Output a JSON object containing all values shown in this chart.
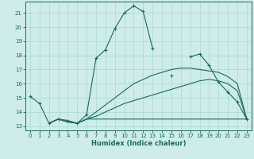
{
  "title": "",
  "xlabel": "Humidex (Indice chaleur)",
  "xlim": [
    -0.5,
    23.5
  ],
  "ylim": [
    12.7,
    21.8
  ],
  "yticks": [
    13,
    14,
    15,
    16,
    17,
    18,
    19,
    20,
    21
  ],
  "xticks": [
    0,
    1,
    2,
    3,
    4,
    5,
    6,
    7,
    8,
    9,
    10,
    11,
    12,
    13,
    14,
    15,
    16,
    17,
    18,
    19,
    20,
    21,
    22,
    23
  ],
  "line_color": "#1a6b5a",
  "bg_color": "#ceecea",
  "grid_color": "#a8d8d4",
  "series": [
    {
      "x": [
        0,
        1,
        2,
        3,
        4,
        5,
        6,
        7,
        8,
        9,
        10,
        11,
        12,
        13,
        14,
        15,
        16,
        17,
        18,
        19,
        20,
        21,
        22,
        23
      ],
      "y": [
        15.1,
        14.6,
        13.2,
        13.5,
        13.4,
        13.2,
        13.8,
        17.8,
        18.4,
        19.9,
        21.0,
        21.5,
        21.1,
        18.5,
        null,
        16.6,
        null,
        17.9,
        18.1,
        17.3,
        16.1,
        15.4,
        14.7,
        13.5
      ],
      "marker": true
    },
    {
      "x": [
        2,
        3,
        4,
        5,
        6,
        23
      ],
      "y": [
        13.2,
        13.5,
        13.3,
        13.2,
        13.5,
        13.5
      ],
      "marker": false
    },
    {
      "x": [
        2,
        3,
        4,
        5,
        6,
        7,
        8,
        9,
        10,
        11,
        12,
        13,
        14,
        15,
        16,
        17,
        18,
        19,
        20,
        21,
        22,
        23
      ],
      "y": [
        13.2,
        13.5,
        13.3,
        13.2,
        13.5,
        14.0,
        14.5,
        15.0,
        15.5,
        16.0,
        16.3,
        16.6,
        16.8,
        17.0,
        17.1,
        17.1,
        17.0,
        16.9,
        16.8,
        16.5,
        16.0,
        13.5
      ],
      "marker": false
    },
    {
      "x": [
        2,
        3,
        4,
        5,
        6,
        7,
        8,
        9,
        10,
        11,
        12,
        13,
        14,
        15,
        16,
        17,
        18,
        19,
        20,
        21,
        22,
        23
      ],
      "y": [
        13.2,
        13.5,
        13.3,
        13.2,
        13.5,
        13.7,
        14.0,
        14.3,
        14.6,
        14.8,
        15.0,
        15.2,
        15.4,
        15.6,
        15.8,
        16.0,
        16.2,
        16.3,
        16.2,
        16.0,
        15.5,
        13.5
      ],
      "marker": false
    }
  ]
}
